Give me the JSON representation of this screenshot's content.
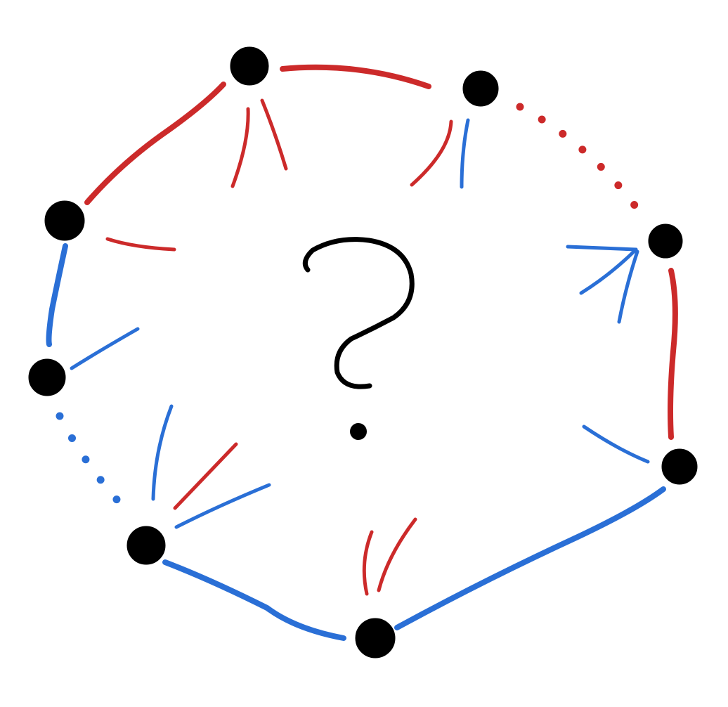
{
  "diagram": {
    "kind": "hand-drawn graph",
    "center_symbol": "?",
    "colors": {
      "red": "#cc2a2a",
      "blue": "#2a6fd6",
      "node": "#000000"
    },
    "nodes": [
      "n-top",
      "n-top-right",
      "n-right",
      "n-lower-right",
      "n-bottom",
      "n-lower-left",
      "n-left",
      "n-upper-left"
    ],
    "edges": [
      {
        "from": "n-top",
        "to": "n-top-right",
        "color": "red",
        "style": "solid"
      },
      {
        "from": "n-top-right",
        "to": "n-right",
        "color": "red",
        "style": "dotted"
      },
      {
        "from": "n-right",
        "to": "n-lower-right",
        "color": "red",
        "style": "solid"
      },
      {
        "from": "n-lower-right",
        "to": "n-bottom",
        "color": "blue",
        "style": "solid"
      },
      {
        "from": "n-bottom",
        "to": "n-lower-left",
        "color": "blue",
        "style": "solid"
      },
      {
        "from": "n-lower-left",
        "to": "n-left",
        "color": "blue",
        "style": "dotted"
      },
      {
        "from": "n-left",
        "to": "n-upper-left",
        "color": "blue",
        "style": "solid"
      },
      {
        "from": "n-upper-left",
        "to": "n-top",
        "color": "red",
        "style": "solid"
      }
    ]
  }
}
